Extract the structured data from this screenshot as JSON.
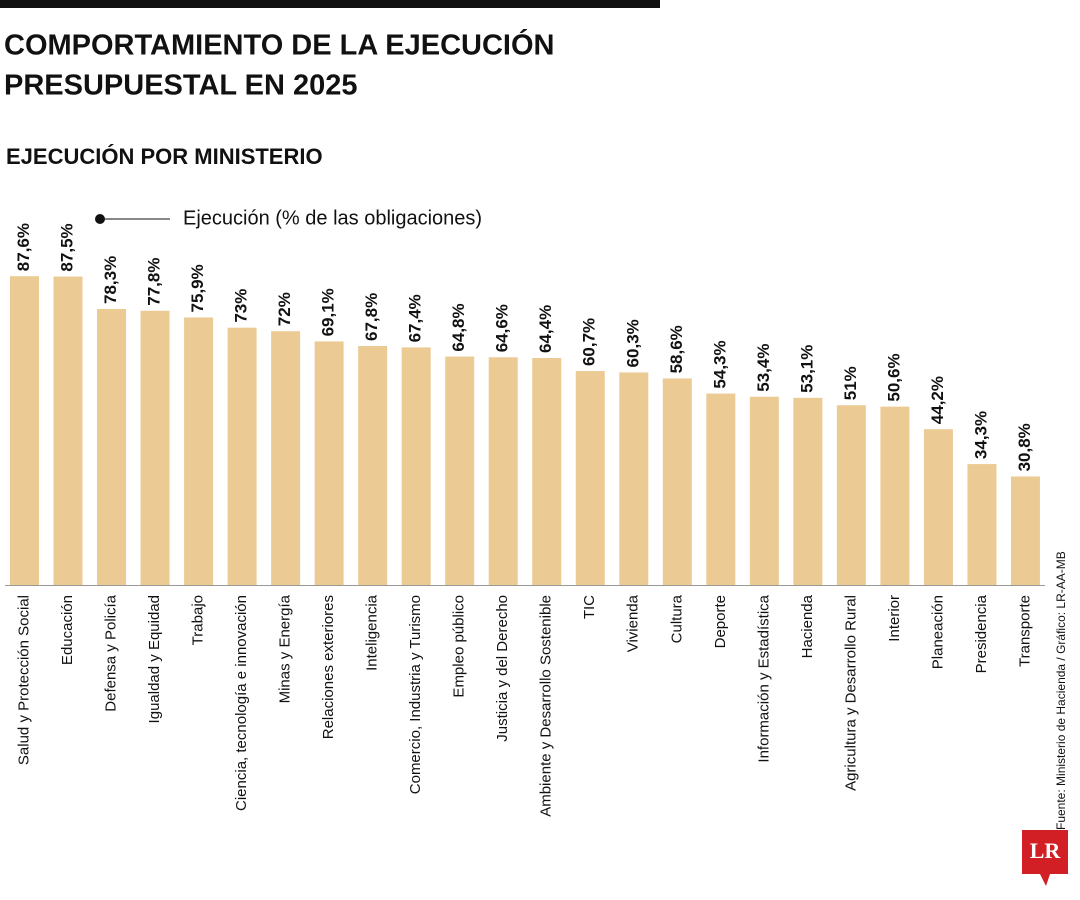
{
  "chart_data": {
    "type": "bar",
    "title": "COMPORTAMIENTO DE LA EJECUCIÓN",
    "title_line2": "PRESUPUESTAL EN 2025",
    "subtitle": "EJECUCIÓN POR MINISTERIO",
    "legend": "Ejecución (% de las obligaciones)",
    "source": "Fuente: Ministerio de Hacienda / Gráfico: LR-AA-MB",
    "logo": "LR",
    "color": "#ebcb93",
    "ylim": [
      0,
      100
    ],
    "categories": [
      "Salud y Protección Social",
      "Educación",
      "Defensa y Policía",
      "Igualdad y Equidad",
      "Trabajo",
      "Ciencia, tecnología e innovación",
      "Minas y Energía",
      "Relaciones exteriores",
      "Inteligencia",
      "Comercio, Industria y Turismo",
      "Empleo público",
      "Justicia y del Derecho",
      "Ambiente y Desarrollo Sostenible",
      "TIC",
      "Vivienda",
      "Cultura",
      "Deporte",
      "Información y Estadística",
      "Hacienda",
      "Agricultura y Desarrollo Rural",
      "Interior",
      "Planeación",
      "Presidencia",
      "Transporte"
    ],
    "values": [
      87.6,
      87.5,
      78.3,
      77.8,
      75.9,
      73,
      72,
      69.1,
      67.8,
      67.4,
      64.8,
      64.6,
      64.4,
      60.7,
      60.3,
      58.6,
      54.3,
      53.4,
      53.1,
      51,
      50.6,
      44.2,
      34.3,
      30.8
    ],
    "value_labels": [
      "87,6%",
      "87,5%",
      "78,3%",
      "77,8%",
      "75,9%",
      "73%",
      "72%",
      "69,1%",
      "67,8%",
      "67,4%",
      "64,8%",
      "64,6%",
      "64,4%",
      "60,7%",
      "60,3%",
      "58,6%",
      "54,3%",
      "53,4%",
      "53,1%",
      "51%",
      "50,6%",
      "44,2%",
      "34,3%",
      "30,8%"
    ]
  }
}
